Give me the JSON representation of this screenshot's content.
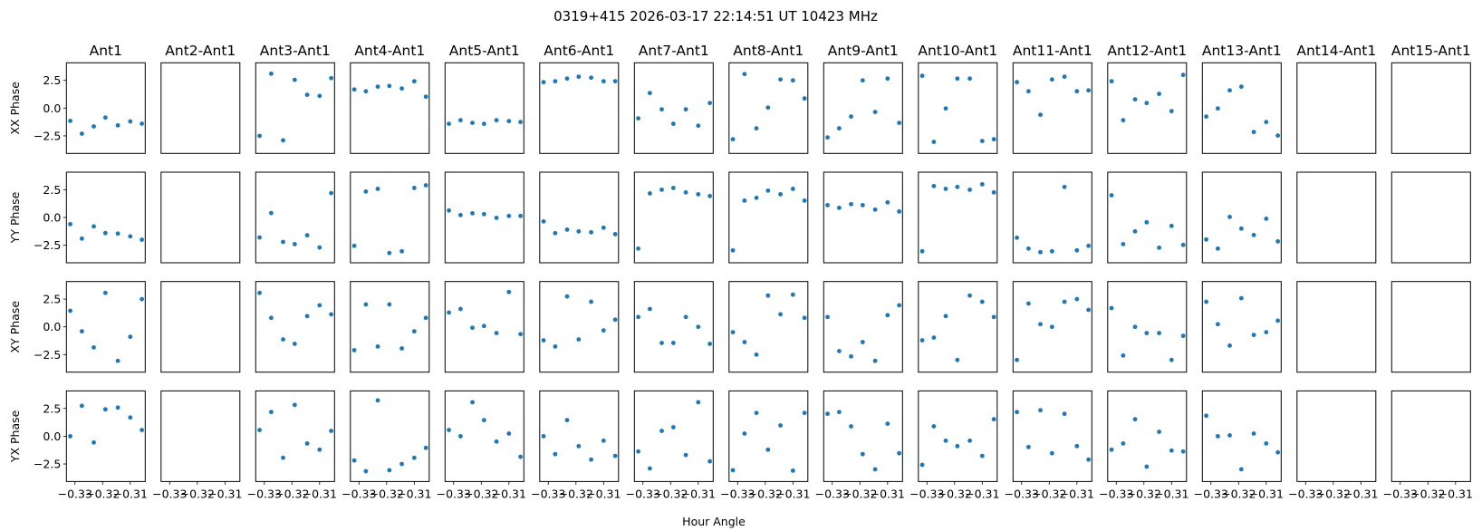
{
  "chart_data": {
    "type": "scatter",
    "title": "0319+415  2026-03-17 22:14:51 UT  10423 MHz",
    "xlabel": "Hour Angle",
    "row_labels": [
      "XX Phase",
      "YY Phase",
      "XY Phase",
      "YX Phase"
    ],
    "columns": [
      "Ant1",
      "Ant2-Ant1",
      "Ant3-Ant1",
      "Ant4-Ant1",
      "Ant5-Ant1",
      "Ant6-Ant1",
      "Ant7-Ant1",
      "Ant8-Ant1",
      "Ant9-Ant1",
      "Ant10-Ant1",
      "Ant11-Ant1",
      "Ant12-Ant1",
      "Ant13-Ant1",
      "Ant14-Ant1",
      "Ant15-Ant1"
    ],
    "xlim": [
      -0.3331,
      -0.3046
    ],
    "ylim": [
      -4.08,
      4.08
    ],
    "xticks": [
      -0.33,
      -0.32,
      -0.31
    ],
    "xtick_labels": [
      "−0.33",
      "−0.32",
      "−0.31"
    ],
    "yticks": [
      2.5,
      0.0,
      -2.5
    ],
    "ytick_labels": [
      "2.5",
      "0.0",
      "−2.5"
    ],
    "grid": false,
    "marker_color": "#1f77b4",
    "x": [
      -0.3317,
      -0.3275,
      -0.3232,
      -0.319,
      -0.3145,
      -0.31,
      -0.3058
    ],
    "panels": {
      "XX": [
        [
          -1.15,
          -2.3,
          -1.65,
          -0.85,
          -1.55,
          -1.2,
          -1.4
        ],
        null,
        [
          -2.5,
          3.1,
          -2.9,
          2.55,
          1.2,
          1.1,
          2.7
        ],
        [
          1.68,
          1.52,
          1.93,
          2.0,
          1.77,
          2.42,
          1.03
        ],
        [
          -1.41,
          -1.09,
          -1.33,
          -1.41,
          -1.09,
          -1.17,
          -1.25
        ],
        [
          2.34,
          2.42,
          2.66,
          2.83,
          2.74,
          2.42,
          2.42
        ],
        [
          -0.92,
          1.36,
          -0.11,
          -1.41,
          -0.11,
          -1.58,
          0.46
        ],
        [
          -2.8,
          3.07,
          -1.82,
          0.05,
          2.58,
          2.5,
          0.87
        ],
        [
          -2.64,
          -1.82,
          -0.76,
          2.5,
          -0.35,
          2.66,
          -1.33
        ],
        [
          2.91,
          -3.04,
          -0.03,
          2.66,
          2.66,
          -2.96,
          -2.8
        ],
        [
          2.34,
          1.52,
          -0.6,
          2.58,
          2.83,
          1.52,
          1.6
        ],
        [
          2.42,
          -1.09,
          0.79,
          0.46,
          1.28,
          -0.27,
          2.99
        ],
        [
          -0.76,
          -0.03,
          1.6,
          1.93,
          -2.15,
          -1.25,
          -2.47
        ],
        null,
        null
      ],
      "YY": [
        [
          -0.6,
          -1.9,
          -0.8,
          -1.4,
          -1.45,
          -1.7,
          -2.0
        ],
        null,
        [
          -1.8,
          0.4,
          -2.2,
          -2.4,
          -1.6,
          -2.7,
          2.2
        ],
        [
          -2.55,
          2.34,
          2.58,
          -3.2,
          -3.04,
          2.66,
          2.9
        ],
        [
          0.63,
          0.22,
          0.38,
          0.3,
          -0.03,
          0.14,
          0.14
        ],
        [
          -0.35,
          -1.41,
          -1.09,
          -1.25,
          -1.33,
          -0.92,
          -1.5
        ],
        [
          -2.8,
          2.17,
          2.5,
          2.66,
          2.26,
          2.09,
          1.93
        ],
        [
          -2.96,
          1.52,
          1.77,
          2.42,
          2.09,
          2.58,
          1.52
        ],
        [
          1.11,
          0.87,
          1.2,
          1.11,
          0.71,
          1.36,
          0.54
        ],
        [
          -3.04,
          2.83,
          2.58,
          2.75,
          2.5,
          2.99,
          2.26
        ],
        [
          -1.82,
          -2.8,
          -3.12,
          -3.04,
          2.75,
          -2.96,
          -2.55
        ],
        [
          2.0,
          -2.4,
          -1.25,
          -0.43,
          -2.72,
          -0.76,
          -2.47
        ],
        [
          -1.98,
          -2.8,
          0.05,
          -1.0,
          -1.58,
          -0.11,
          -2.15
        ],
        null,
        null
      ],
      "XY": [
        [
          1.45,
          -0.4,
          -1.85,
          3.06,
          -3.06,
          -0.89,
          2.5
        ],
        null,
        [
          3.06,
          0.81,
          -1.13,
          -1.53,
          0.97,
          1.94,
          1.13
        ],
        [
          -2.1,
          2.02,
          -1.77,
          2.02,
          -1.94,
          -0.4,
          0.81
        ],
        [
          1.29,
          1.61,
          -0.08,
          0.08,
          -0.56,
          3.14,
          -0.65
        ],
        [
          -1.21,
          -1.77,
          2.74,
          -1.13,
          2.26,
          -0.32,
          0.65
        ],
        [
          0.89,
          1.61,
          -1.45,
          -1.45,
          0.89,
          0.0,
          -1.53
        ],
        [
          -0.48,
          -1.37,
          -2.5,
          2.82,
          1.13,
          2.9,
          0.81
        ],
        [
          0.89,
          -2.18,
          -2.66,
          -1.37,
          -3.06,
          1.05,
          1.94
        ],
        [
          -1.21,
          -0.97,
          0.97,
          -2.98,
          2.82,
          2.26,
          0.89
        ],
        [
          -2.98,
          2.1,
          0.24,
          0.0,
          2.26,
          2.5,
          1.53
        ],
        [
          1.69,
          -2.58,
          0.0,
          -0.56,
          -0.56,
          -2.98,
          -0.81
        ],
        [
          2.26,
          0.24,
          -1.69,
          2.58,
          -0.73,
          -0.48,
          0.56
        ],
        null,
        null
      ],
      "YX": [
        [
          0.0,
          2.74,
          -0.56,
          2.42,
          2.58,
          1.69,
          0.56
        ],
        null,
        [
          0.56,
          2.18,
          -1.94,
          2.82,
          -0.65,
          -1.21,
          0.48
        ],
        [
          -2.18,
          -3.15,
          3.23,
          -3.06,
          -2.5,
          -1.94,
          -1.05
        ],
        [
          0.56,
          0.0,
          3.06,
          1.45,
          -0.48,
          0.24,
          -1.85
        ],
        [
          0.0,
          -1.61,
          1.45,
          -0.89,
          -2.1,
          -0.4,
          -1.77
        ],
        [
          -1.37,
          -2.9,
          0.48,
          0.81,
          -1.69,
          3.06,
          -2.26
        ],
        [
          -3.06,
          0.24,
          2.1,
          -1.21,
          0.97,
          -3.1,
          2.1
        ],
        [
          2.02,
          2.18,
          0.89,
          -1.61,
          -2.98,
          1.13,
          -1.53
        ],
        [
          -2.58,
          0.89,
          -0.4,
          -0.89,
          -0.4,
          -1.77,
          1.53
        ],
        [
          2.18,
          -0.97,
          2.34,
          -1.53,
          2.02,
          -0.89,
          -2.1
        ],
        [
          -1.21,
          -0.65,
          1.53,
          -2.74,
          0.4,
          -1.29,
          -1.37
        ],
        [
          1.85,
          0.0,
          0.08,
          -2.98,
          0.24,
          -0.65,
          -1.45
        ],
        null,
        null
      ]
    }
  }
}
